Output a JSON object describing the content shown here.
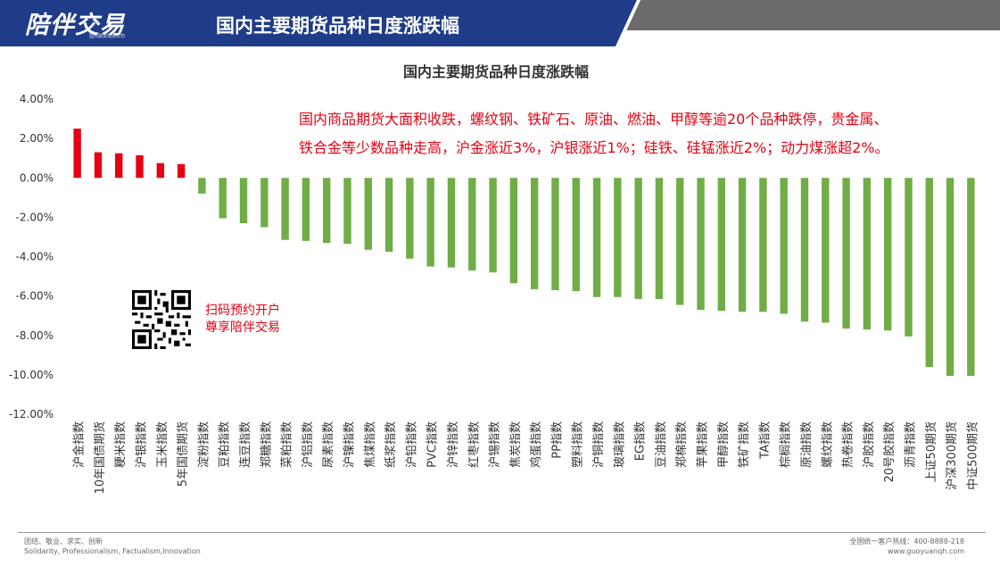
{
  "header": {
    "logo_text": "陪伴交易",
    "logo_sub": "国元期货有限公司",
    "title": "国内主要期货品种日度涨跌幅"
  },
  "annotation": {
    "line1": "国内商品期货大面积收跌，螺纹钢、铁矿石、原油、燃油、甲醇等逾20个品种跌停，贵金属、",
    "line2": "铁合金等少数品种走高，沪金涨近3%，沪银涨近1%；硅铁、硅锰涨近2%；动力煤涨超2%。"
  },
  "qr": {
    "line1": "扫码预约开户",
    "line2": "尊享陪伴交易"
  },
  "footer": {
    "left_line1": "团结、敬业、求实、创新",
    "left_line2": "Solidarity, Professionalism, Factualism,Innovation",
    "right_line1": "全国统一客户热线：400-8888-218",
    "right_line2": "www.guoyuanqh.com"
  },
  "colors": {
    "banner_blue": "#1f3c88",
    "banner_gray": "#6b6b6b",
    "positive": "#e60012",
    "negative": "#70ad47",
    "annotation": "#e60012"
  },
  "chart_data": {
    "type": "bar",
    "title": "国内主要期货品种日度涨跌幅",
    "xlabel": "",
    "ylabel": "",
    "ylim": [
      -12,
      4
    ],
    "yticks": [
      4,
      2,
      0,
      -2,
      -4,
      -6,
      -8,
      -10,
      -12
    ],
    "y_tick_format": "percent_2dp",
    "grid": false,
    "legend": "none",
    "categories": [
      "沪金指数",
      "10年国债期货",
      "粳米指数",
      "沪银指数",
      "玉米指数",
      "5年国债期货",
      "淀粉指数",
      "豆粕指数",
      "连豆指数",
      "郑糖指数",
      "菜粕指数",
      "沪铝指数",
      "尿素指数",
      "沪镍指数",
      "焦煤指数",
      "纸浆指数",
      "沪铅指数",
      "PVC指数",
      "沪锌指数",
      "红枣指数",
      "沪锡指数",
      "焦炭指数",
      "鸡蛋指数",
      "PP指数",
      "塑料指数",
      "沪铜指数",
      "玻璃指数",
      "EG指数",
      "豆油指数",
      "郑棉指数",
      "苹果指数",
      "甲醇指数",
      "铁矿指数",
      "TA指数",
      "棕榈指数",
      "原油指数",
      "螺纹指数",
      "热卷指数",
      "沪胶指数",
      "20号胶指数",
      "沥青指数",
      "上证50期货",
      "沪深300期货",
      "中证500期货"
    ],
    "values": [
      2.5,
      1.3,
      1.25,
      1.15,
      0.75,
      0.7,
      -0.8,
      -2.05,
      -2.3,
      -2.5,
      -3.15,
      -3.2,
      -3.3,
      -3.35,
      -3.65,
      -3.75,
      -4.1,
      -4.5,
      -4.55,
      -4.7,
      -4.8,
      -5.35,
      -5.65,
      -5.7,
      -5.75,
      -6.05,
      -6.05,
      -6.15,
      -6.15,
      -6.45,
      -6.7,
      -6.75,
      -6.8,
      -6.8,
      -6.9,
      -7.3,
      -7.35,
      -7.65,
      -7.7,
      -7.75,
      -8.05,
      -9.6,
      -10.05,
      -10.05
    ]
  }
}
